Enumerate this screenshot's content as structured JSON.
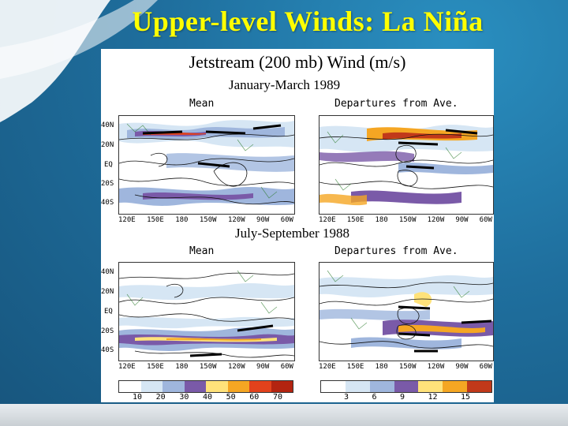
{
  "slide": {
    "title": "Upper-level Winds: La Niña"
  },
  "figure": {
    "title": "Jetstream (200 mb) Wind (m/s)",
    "periods": [
      {
        "label": "January-March 1989",
        "left_panel": "Mean",
        "right_panel": "Departures from Ave."
      },
      {
        "label": "July-September 1988",
        "left_panel": "Mean",
        "right_panel": "Departures from Ave."
      }
    ],
    "latitudes": [
      "40N",
      "20N",
      "EQ",
      "20S",
      "40S"
    ],
    "latitudes_bottom": [
      "40N",
      "20N",
      "EQ",
      "20S",
      "40S"
    ],
    "longitudes_left": [
      "120E",
      "150E",
      "180",
      "150W",
      "120W",
      "90W",
      "60W"
    ],
    "longitudes_right": [
      "120E",
      "150E",
      "180",
      "150W",
      "120W",
      "90W",
      "60W"
    ],
    "mean_scale": {
      "labels": [
        "10",
        "20",
        "30",
        "40",
        "50",
        "60",
        "70"
      ],
      "colors": [
        "#ffffff",
        "#d6e6f4",
        "#9fb6dd",
        "#7a5aa8",
        "#ffe27a",
        "#f5a623",
        "#e2421c",
        "#b32410"
      ]
    },
    "departure_scale": {
      "labels": [
        "3",
        "6",
        "9",
        "12",
        "15"
      ],
      "colors": [
        "#ffffff",
        "#d6e6f4",
        "#9fb6dd",
        "#7a5aa8",
        "#ffe27a",
        "#f5a623",
        "#c1391a"
      ]
    }
  }
}
